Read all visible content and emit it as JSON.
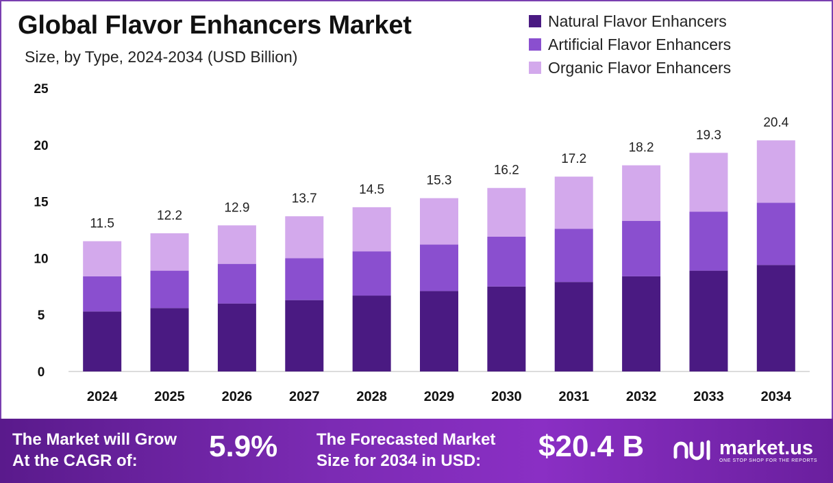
{
  "header": {
    "title": "Global Flavor Enhancers Market",
    "subtitle": "Size, by Type, 2024-2034 (USD Billion)"
  },
  "colors": {
    "natural": "#4a1a82",
    "artificial": "#8a4fcf",
    "organic": "#d3a9ec",
    "accent": "#7a3fb0"
  },
  "chart_data": {
    "type": "bar",
    "stacked": true,
    "categories": [
      "2024",
      "2025",
      "2026",
      "2027",
      "2028",
      "2029",
      "2030",
      "2031",
      "2032",
      "2033",
      "2034"
    ],
    "series": [
      {
        "name": "Natural Flavor Enhancers",
        "values": [
          5.3,
          5.6,
          6.0,
          6.3,
          6.7,
          7.1,
          7.5,
          7.9,
          8.4,
          8.9,
          9.4
        ]
      },
      {
        "name": "Artificial Flavor Enhancers",
        "values": [
          3.1,
          3.3,
          3.5,
          3.7,
          3.9,
          4.1,
          4.4,
          4.7,
          4.9,
          5.2,
          5.5
        ]
      },
      {
        "name": "Organic Flavor Enhancers",
        "values": [
          3.1,
          3.3,
          3.4,
          3.7,
          3.9,
          4.1,
          4.3,
          4.6,
          4.9,
          5.2,
          5.5
        ]
      }
    ],
    "totals": [
      "11.5",
      "12.2",
      "12.9",
      "13.7",
      "14.5",
      "15.3",
      "16.2",
      "17.2",
      "18.2",
      "19.3",
      "20.4"
    ],
    "yticks": [
      "0",
      "5",
      "10",
      "15",
      "20",
      "25"
    ],
    "ylim": [
      0,
      25
    ],
    "legend_position": "top-right",
    "grid": false
  },
  "footer": {
    "cagr_line1": "The Market will Grow",
    "cagr_line2": "At the CAGR of:",
    "cagr_value": "5.9%",
    "forecast_line1": "The Forecasted Market",
    "forecast_line2": "Size for 2034 in USD:",
    "forecast_value": "$20.4 B",
    "logo_name": "market.us",
    "logo_tagline": "ONE STOP SHOP FOR THE REPORTS"
  }
}
